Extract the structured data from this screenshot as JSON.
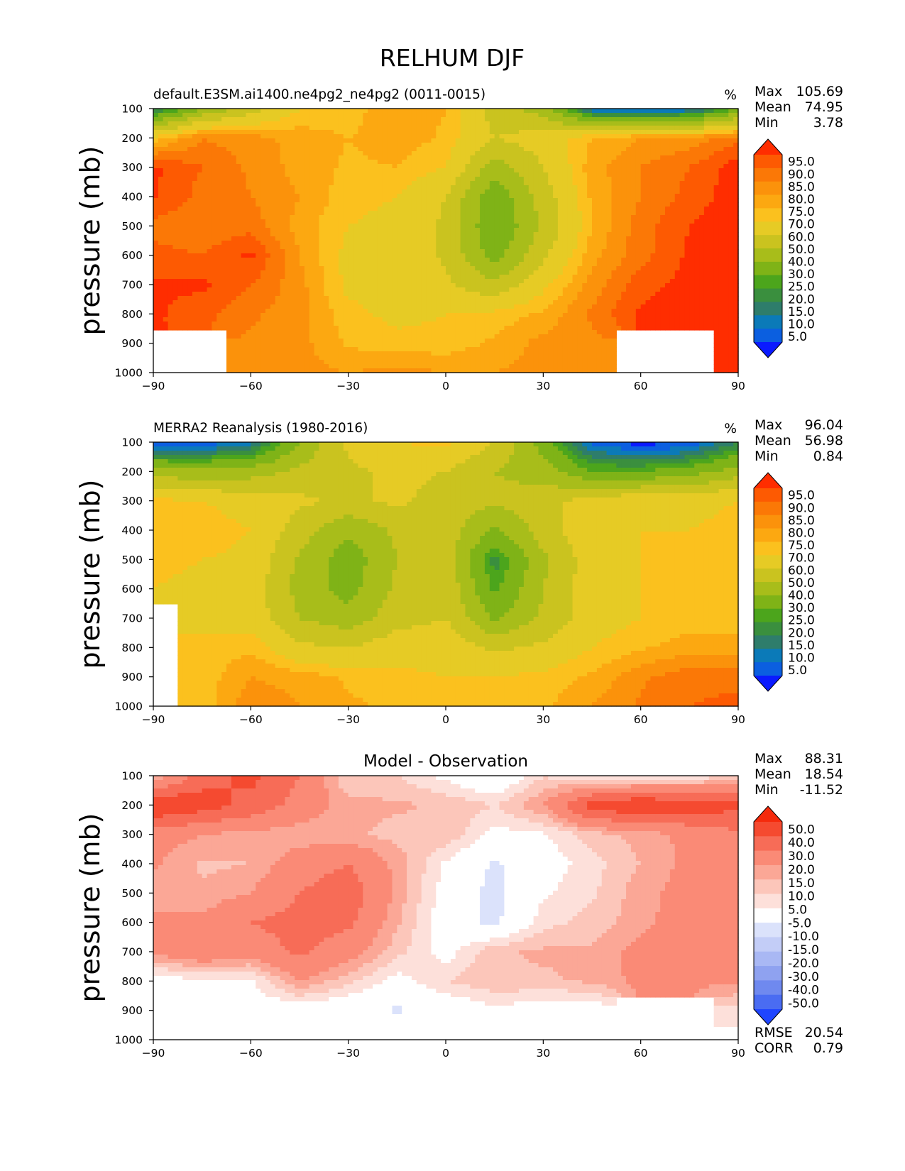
{
  "figure": {
    "title": "RELHUM DJF"
  },
  "palettes": {
    "abs": [
      "#0a1aff",
      "#0b5fe0",
      "#0b7ab8",
      "#2e7d6b",
      "#3a8f3e",
      "#4ca51c",
      "#7fb317",
      "#a8bd1a",
      "#cac31f",
      "#e6cb25",
      "#fbc11e",
      "#fca811",
      "#fb920b",
      "#fb7806",
      "#fd5a02",
      "#ff2d00"
    ],
    "diff": [
      "#1f45ff",
      "#4a6cf2",
      "#6f89ef",
      "#8fa2f0",
      "#a9b8f4",
      "#c3cdf7",
      "#dbe2fb",
      "#ffffff",
      "#fde0da",
      "#fcc6ba",
      "#fba796",
      "#fa8a76",
      "#f76c57",
      "#f54a30",
      "#f52a0c"
    ]
  },
  "chart_data": [
    {
      "type": "contour",
      "name": "model",
      "subtitle_left": "default.E3SM.ai1400.ne4pg2_ne4pg2 (0011-0015)",
      "units": "%",
      "stats": [
        {
          "label": "Max",
          "value": "105.69"
        },
        {
          "label": "Mean",
          "value": "74.95"
        },
        {
          "label": "Min",
          "value": "3.78"
        }
      ],
      "ylabel": "pressure (mb)",
      "xticks": [
        "−90",
        "−60",
        "−30",
        "0",
        "30",
        "60",
        "90"
      ],
      "yticks": [
        "100",
        "200",
        "300",
        "400",
        "500",
        "600",
        "700",
        "800",
        "900",
        "1000"
      ],
      "xlim": [
        -90,
        90
      ],
      "ylim": [
        1000,
        100
      ],
      "colorbar_levels": [
        "95.0",
        "90.0",
        "85.0",
        "80.0",
        "75.0",
        "70.0",
        "60.0",
        "50.0",
        "40.0",
        "30.0",
        "25.0",
        "20.0",
        "15.0",
        "10.0",
        "5.0"
      ],
      "lat": [
        -90,
        -75,
        -60,
        -45,
        -30,
        -15,
        0,
        15,
        30,
        45,
        60,
        75,
        90
      ],
      "lev": [
        100,
        200,
        300,
        400,
        500,
        600,
        700,
        800,
        900,
        1000
      ],
      "values": [
        [
          15,
          40,
          55,
          70,
          72,
          80,
          75,
          55,
          45,
          10,
          6,
          10,
          30
        ],
        [
          72,
          85,
          82,
          78,
          75,
          78,
          74,
          60,
          65,
          75,
          80,
          82,
          88
        ],
        [
          96,
          90,
          84,
          78,
          74,
          75,
          70,
          45,
          60,
          78,
          85,
          90,
          98
        ],
        [
          96,
          88,
          85,
          80,
          72,
          70,
          60,
          32,
          55,
          76,
          85,
          92,
          98
        ],
        [
          88,
          86,
          88,
          78,
          70,
          68,
          58,
          30,
          52,
          75,
          88,
          95,
          99
        ],
        [
          92,
          90,
          96,
          80,
          68,
          68,
          58,
          35,
          58,
          78,
          88,
          96,
          99
        ],
        [
          96,
          96,
          90,
          82,
          68,
          68,
          62,
          52,
          68,
          82,
          93,
          97,
          99
        ],
        [
          96,
          92,
          86,
          82,
          72,
          68,
          70,
          72,
          76,
          86,
          96,
          99,
          99
        ],
        [
          null,
          null,
          84,
          82,
          74,
          72,
          72,
          76,
          82,
          84,
          null,
          null,
          99
        ],
        [
          null,
          null,
          84,
          82,
          80,
          82,
          80,
          80,
          82,
          84,
          null,
          null,
          99
        ]
      ]
    },
    {
      "type": "contour",
      "name": "observation",
      "subtitle_left": "MERRA2 Reanalysis (1980-2016)",
      "units": "%",
      "stats": [
        {
          "label": "Max",
          "value": "96.04"
        },
        {
          "label": "Mean",
          "value": "56.98"
        },
        {
          "label": "Min",
          "value": "0.84"
        }
      ],
      "ylabel": "pressure (mb)",
      "xticks": [
        "−90",
        "−60",
        "−30",
        "0",
        "30",
        "60",
        "90"
      ],
      "yticks": [
        "100",
        "200",
        "300",
        "400",
        "500",
        "600",
        "700",
        "800",
        "900",
        "1000"
      ],
      "xlim": [
        -90,
        90
      ],
      "ylim": [
        1000,
        100
      ],
      "colorbar_levels": [
        "95.0",
        "90.0",
        "85.0",
        "80.0",
        "75.0",
        "70.0",
        "60.0",
        "50.0",
        "40.0",
        "30.0",
        "25.0",
        "20.0",
        "15.0",
        "10.0",
        "5.0"
      ],
      "lat": [
        -90,
        -75,
        -60,
        -45,
        -30,
        -15,
        0,
        15,
        30,
        45,
        60,
        75,
        90
      ],
      "lev": [
        100,
        200,
        300,
        400,
        500,
        600,
        700,
        800,
        900,
        1000
      ],
      "values": [
        [
          3,
          5,
          12,
          40,
          62,
          70,
          72,
          60,
          35,
          8,
          2,
          5,
          20
        ],
        [
          45,
          42,
          45,
          52,
          58,
          62,
          60,
          50,
          45,
          30,
          30,
          35,
          45
        ],
        [
          72,
          70,
          66,
          62,
          58,
          62,
          56,
          52,
          56,
          65,
          68,
          68,
          70
        ],
        [
          75,
          74,
          70,
          55,
          42,
          52,
          56,
          38,
          55,
          68,
          70,
          70,
          72
        ],
        [
          72,
          70,
          68,
          48,
          34,
          50,
          56,
          22,
          48,
          66,
          70,
          72,
          72
        ],
        [
          70,
          68,
          66,
          46,
          36,
          52,
          58,
          28,
          50,
          66,
          70,
          72,
          72
        ],
        [
          null,
          68,
          66,
          50,
          44,
          56,
          60,
          38,
          52,
          66,
          70,
          72,
          72
        ],
        [
          null,
          72,
          74,
          62,
          60,
          66,
          66,
          58,
          62,
          70,
          74,
          78,
          78
        ],
        [
          null,
          72,
          80,
          78,
          74,
          72,
          70,
          70,
          72,
          76,
          84,
          88,
          88
        ],
        [
          null,
          72,
          84,
          80,
          76,
          74,
          72,
          70,
          74,
          80,
          86,
          90,
          92
        ]
      ]
    },
    {
      "type": "contour",
      "name": "difference",
      "subtitle_center": "Model - Observation",
      "stats": [
        {
          "label": "Max",
          "value": "88.31"
        },
        {
          "label": "Mean",
          "value": "18.54"
        },
        {
          "label": "Min",
          "value": "-11.52"
        }
      ],
      "footer_stats": [
        {
          "label": "RMSE",
          "value": "20.54"
        },
        {
          "label": "CORR",
          "value": "0.79"
        }
      ],
      "ylabel": "pressure (mb)",
      "xticks": [
        "−90",
        "−60",
        "−30",
        "0",
        "30",
        "60",
        "90"
      ],
      "yticks": [
        "100",
        "200",
        "300",
        "400",
        "500",
        "600",
        "700",
        "800",
        "900",
        "1000"
      ],
      "xlim": [
        -90,
        90
      ],
      "ylim": [
        1000,
        100
      ],
      "colorbar_levels": [
        "50.0",
        "40.0",
        "30.0",
        "20.0",
        "15.0",
        "10.0",
        "5.0",
        "-5.0",
        "-10.0",
        "-15.0",
        "-20.0",
        "-30.0",
        "-40.0",
        "-50.0"
      ],
      "lat": [
        -90,
        -75,
        -60,
        -45,
        -30,
        -15,
        0,
        15,
        30,
        45,
        60,
        75,
        90
      ],
      "lev": [
        100,
        200,
        300,
        400,
        500,
        600,
        700,
        800,
        900,
        1000
      ],
      "values": [
        [
          12,
          35,
          43,
          30,
          10,
          10,
          3,
          -5,
          10,
          2,
          4,
          5,
          10
        ],
        [
          52,
          45,
          37,
          26,
          17,
          16,
          14,
          10,
          20,
          45,
          50,
          47,
          43
        ],
        [
          24,
          20,
          18,
          16,
          16,
          13,
          14,
          3,
          4,
          13,
          17,
          22,
          28
        ],
        [
          21,
          14,
          15,
          25,
          30,
          18,
          4,
          -6,
          1,
          8,
          15,
          22,
          26
        ],
        [
          16,
          16,
          20,
          30,
          36,
          18,
          2,
          -8,
          4,
          9,
          18,
          23,
          27
        ],
        [
          22,
          22,
          30,
          34,
          32,
          16,
          0,
          -7,
          8,
          12,
          18,
          24,
          27
        ],
        [
          22,
          28,
          24,
          32,
          24,
          12,
          2,
          14,
          16,
          16,
          23,
          25,
          27
        ],
        [
          0,
          4,
          4,
          20,
          12,
          2,
          10,
          14,
          14,
          16,
          22,
          21,
          21
        ],
        [
          null,
          null,
          0,
          0,
          -2,
          -6,
          -2,
          4,
          0,
          0,
          null,
          null,
          8
        ],
        [
          null,
          null,
          2,
          2,
          2,
          2,
          2,
          2,
          2,
          2,
          null,
          null,
          2
        ]
      ]
    }
  ]
}
